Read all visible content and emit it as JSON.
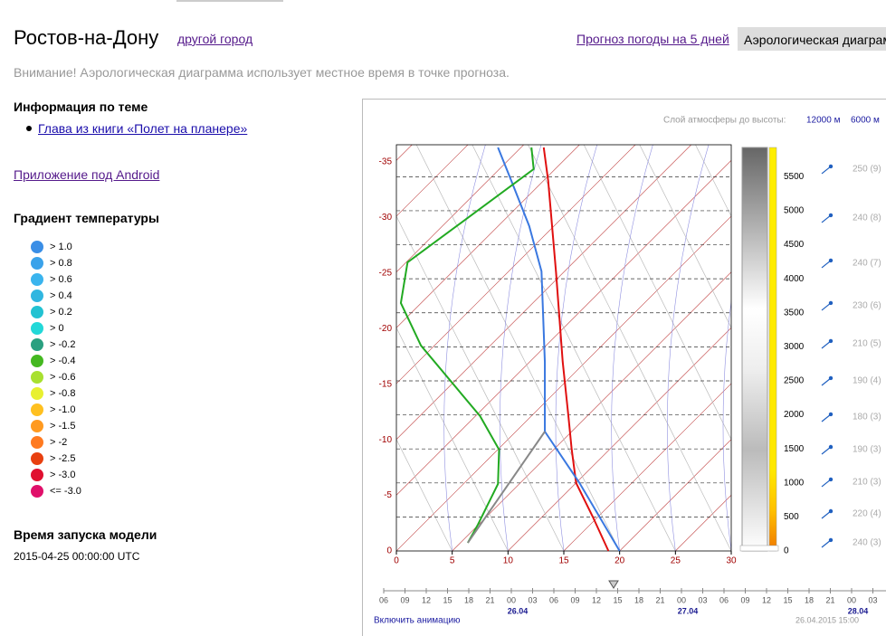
{
  "header": {
    "city": "Ростов-на-Дону",
    "change_city": "другой город",
    "tabs": [
      "Прогноз погоды на 5 дней",
      "Аэрологическая диаграмма"
    ]
  },
  "notice": "Внимание! Аэрологическая диаграмма использует местное время в точке прогноза.",
  "sidebar": {
    "topic_title": "Информация по теме",
    "topic_link": "Глава из книги «Полет на планере»",
    "android_link": "Приложение под Android",
    "gradient_title": "Градиент температуры",
    "gradient_legend": [
      {
        "label": "> 1.0",
        "color": "#3a8ee6"
      },
      {
        "label": "> 0.8",
        "color": "#3aa2ea"
      },
      {
        "label": "> 0.6",
        "color": "#3ab4ee"
      },
      {
        "label": "> 0.4",
        "color": "#30b6e0"
      },
      {
        "label": "> 0.2",
        "color": "#22c2d2"
      },
      {
        "label": "> 0",
        "color": "#22d8d8"
      },
      {
        "label": "> -0.2",
        "color": "#2aa080"
      },
      {
        "label": "> -0.4",
        "color": "#44b820"
      },
      {
        "label": "> -0.6",
        "color": "#a8e030"
      },
      {
        "label": "> -0.8",
        "color": "#e8f030"
      },
      {
        "label": "> -1.0",
        "color": "#ffc020"
      },
      {
        "label": "> -1.5",
        "color": "#ff9a20"
      },
      {
        "label": "> -2",
        "color": "#ff7a20"
      },
      {
        "label": "> -2.5",
        "color": "#e84010"
      },
      {
        "label": "> -3.0",
        "color": "#e01030"
      },
      {
        "label": "<= -3.0",
        "color": "#e0106a"
      }
    ],
    "model_title": "Время запуска модели",
    "model_time": "2015-04-25 00:00:00 UTC"
  },
  "chart_data": {
    "type": "line",
    "layer_label": "Слой атмосферы до высоты:",
    "layer_options": [
      "12000 м",
      "6000 м"
    ],
    "xlim": [
      0,
      30
    ],
    "xticks": [
      0,
      5,
      10,
      15,
      20,
      25,
      30
    ],
    "ylim": [
      0,
      5930
    ],
    "yticks": [
      0,
      500,
      1000,
      1500,
      2000,
      2500,
      3000,
      3500,
      4000,
      4500,
      5000,
      5500
    ],
    "y_left_lim": [
      0,
      -36.3
    ],
    "y_left_ticks": [
      0,
      -5,
      -10,
      -15,
      -20,
      -25,
      -30,
      -35
    ],
    "series": [
      {
        "color": "#e01010",
        "values": [
          19.0,
          17.6,
          16.1,
          15.7,
          15.4,
          14.9,
          14.3,
          13.6,
          13.2
        ],
        "heights": [
          0,
          500,
          1000,
          1500,
          2000,
          2780,
          4100,
          5440,
          5930
        ]
      },
      {
        "color": "#3a78e0",
        "values": [
          20.0,
          16.4,
          13.3,
          13.3,
          13.0,
          11.9,
          10.3,
          9.1
        ],
        "heights": [
          0,
          1000,
          1755,
          2780,
          4110,
          4775,
          5440,
          5930
        ]
      },
      {
        "color": "#22aa22",
        "values": [
          6.4,
          7.3,
          9.1,
          9.2,
          7.5,
          2.2,
          0.4,
          1.0,
          12.3,
          12.1
        ],
        "heights": [
          120,
          386,
          984,
          1489,
          1981,
          3019,
          3644,
          4242,
          5612,
          5930
        ]
      },
      {
        "color": "#888888",
        "values": [
          6.4,
          13.3
        ],
        "heights": [
          120,
          1755
        ]
      }
    ],
    "winds": [
      {
        "label": "250 (9)",
        "height": 5612
      },
      {
        "label": "240 (8)",
        "height": 4894
      },
      {
        "label": "240 (7)",
        "height": 4229
      },
      {
        "label": "230 (6)",
        "height": 3604
      },
      {
        "label": "210 (5)",
        "height": 3045
      },
      {
        "label": "190 (4)",
        "height": 2500
      },
      {
        "label": "180 (3)",
        "height": 1968
      },
      {
        "label": "190 (3)",
        "height": 1489
      },
      {
        "label": "210 (3)",
        "height": 1011
      },
      {
        "label": "220 (4)",
        "height": 545
      },
      {
        "label": "240 (3)",
        "height": 120
      }
    ]
  },
  "timeline": {
    "hours": [
      "06",
      "09",
      "12",
      "15",
      "18",
      "21",
      "00",
      "03",
      "06",
      "09",
      "12",
      "15",
      "18",
      "21",
      "00",
      "03",
      "06",
      "09",
      "12",
      "15",
      "18",
      "21",
      "00",
      "03"
    ],
    "dates": [
      "26.04",
      "27.04",
      "28.04"
    ],
    "animation": "Включить анимацию",
    "current": "26.04.2015 15:00"
  }
}
